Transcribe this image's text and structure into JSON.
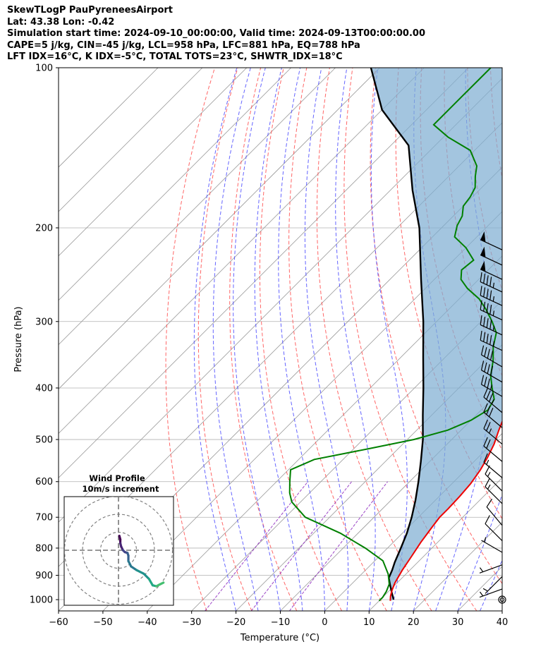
{
  "header": {
    "line1": "SkewTLogP PauPyreneesAirport",
    "line2": "Lat: 43.38   Lon: -0.42",
    "line3": "Simulation start time: 2024-09-10_00:00:00, Valid time: 2024-09-13T00:00:00.00",
    "line4": "CAPE=5 j/kg, CIN=-45 j/kg, LCL=958 hPa, LFC=881 hPa, EQ=788 hPa",
    "line5": "LFT IDX=16°C, K IDX=-5°C, TOTAL TOTS=23°C, SHWTR_IDX=18°C"
  },
  "chart_data": {
    "type": "line",
    "subtype": "skew-t log-p",
    "xlabel": "Temperature (°C)",
    "ylabel": "Pressure (hPa)",
    "xlim": [
      -60,
      40
    ],
    "ylim": [
      1050,
      100
    ],
    "y_scale": "log",
    "x_ticks": [
      -60,
      -50,
      -40,
      -30,
      -20,
      -10,
      0,
      10,
      20,
      30,
      40
    ],
    "x_tick_labels": [
      "−60",
      "−50",
      "−40",
      "−30",
      "−20",
      "−10",
      "0",
      "10",
      "20",
      "30",
      "40"
    ],
    "y_ticks": [
      1000,
      900,
      800,
      700,
      600,
      500,
      400,
      300,
      200,
      100
    ],
    "y_tick_labels": [
      "1000",
      "900",
      "800",
      "700",
      "600",
      "500",
      "400",
      "300",
      "200",
      "100"
    ],
    "grid": true,
    "colors": {
      "temperature": "#ee0000",
      "dewpoint": "#008000",
      "parcel": "#000000",
      "cape_fill": "#7fafd2",
      "dry_adiabat": "#ff5555",
      "moist_adiabat": "#4a4aff",
      "mixing_ratio": "#9030c0",
      "isotherm": "#999999",
      "barb": "#000000"
    },
    "series": [
      {
        "key": "temperature",
        "points": [
          [
            12.5,
            1005
          ],
          [
            11.5,
            985
          ],
          [
            10.5,
            960
          ],
          [
            9.5,
            930
          ],
          [
            8.3,
            880
          ],
          [
            7.3,
            830
          ],
          [
            6.2,
            780
          ],
          [
            5.3,
            730
          ],
          [
            4.8,
            700
          ],
          [
            4.8,
            675
          ],
          [
            4.6,
            640
          ],
          [
            4.2,
            605
          ],
          [
            3.3,
            570
          ],
          [
            2.1,
            540
          ],
          [
            0.6,
            510
          ],
          [
            -1.5,
            480
          ],
          [
            -3.5,
            450
          ],
          [
            -5.7,
            420
          ],
          [
            -8.2,
            390
          ],
          [
            -11.7,
            360
          ],
          [
            -16.0,
            330
          ],
          [
            -20.2,
            300
          ],
          [
            -24.3,
            275
          ],
          [
            -28.3,
            250
          ],
          [
            -33.0,
            230
          ],
          [
            -38.0,
            210
          ],
          [
            -43.0,
            195
          ],
          [
            -48.5,
            180
          ],
          [
            -55.0,
            165
          ],
          [
            -60.5,
            150
          ],
          [
            -64.0,
            138
          ],
          [
            -66.5,
            128
          ],
          [
            -68.5,
            120
          ],
          [
            -71.5,
            112
          ],
          [
            -75.0,
            105
          ],
          [
            -77.5,
            100
          ]
        ]
      },
      {
        "key": "dewpoint",
        "points": [
          [
            10.0,
            1005
          ],
          [
            10.0,
            990
          ],
          [
            9.5,
            965
          ],
          [
            8.5,
            935
          ],
          [
            6.0,
            895
          ],
          [
            1.8,
            845
          ],
          [
            -5.0,
            800
          ],
          [
            -14.0,
            750
          ],
          [
            -25.5,
            700
          ],
          [
            -32.0,
            655
          ],
          [
            -34.5,
            630
          ],
          [
            -37.0,
            600
          ],
          [
            -39.5,
            570
          ],
          [
            -36.5,
            545
          ],
          [
            -26.5,
            520
          ],
          [
            -18.5,
            500
          ],
          [
            -13.0,
            480
          ],
          [
            -10.0,
            460
          ],
          [
            -8.5,
            440
          ],
          [
            -9.5,
            420
          ],
          [
            -12.5,
            400
          ],
          [
            -15.5,
            380
          ],
          [
            -18.5,
            355
          ],
          [
            -21.5,
            335
          ],
          [
            -24.0,
            315
          ],
          [
            -27.5,
            300
          ],
          [
            -31.5,
            285
          ],
          [
            -35.5,
            272
          ],
          [
            -40.5,
            260
          ],
          [
            -44.0,
            250
          ],
          [
            -46.0,
            240
          ],
          [
            -45.5,
            230
          ],
          [
            -50.0,
            218
          ],
          [
            -55.0,
            208
          ],
          [
            -57.0,
            198
          ],
          [
            -58.0,
            190
          ],
          [
            -60.0,
            182
          ],
          [
            -60.5,
            175
          ],
          [
            -61.5,
            168
          ],
          [
            -64.0,
            160
          ],
          [
            -66.0,
            153
          ],
          [
            -71.0,
            143
          ],
          [
            -79.0,
            135
          ],
          [
            -85.0,
            128
          ],
          [
            -85.0,
            120
          ],
          [
            -85.0,
            112
          ],
          [
            -85.0,
            105
          ],
          [
            -85.0,
            100
          ]
        ]
      },
      {
        "key": "parcel",
        "points": [
          [
            13.0,
            1000
          ],
          [
            11.0,
            970
          ],
          [
            9.0,
            940
          ],
          [
            7.0,
            910
          ],
          [
            6.0,
            880
          ],
          [
            4.8,
            850
          ],
          [
            3.0,
            800
          ],
          [
            1.0,
            750
          ],
          [
            -1.5,
            700
          ],
          [
            -4.5,
            650
          ],
          [
            -8.0,
            600
          ],
          [
            -12.0,
            550
          ],
          [
            -16.5,
            500
          ],
          [
            -22.0,
            450
          ],
          [
            -28.0,
            400
          ],
          [
            -35.0,
            350
          ],
          [
            -43.0,
            300
          ],
          [
            -53.0,
            250
          ],
          [
            -65.0,
            200
          ],
          [
            -75.0,
            170
          ],
          [
            -86.0,
            140
          ],
          [
            -100.0,
            120
          ],
          [
            -112.0,
            100
          ]
        ]
      }
    ],
    "winds": [
      {
        "p": 1000,
        "speed_kt": 0,
        "dir_deg": 0
      },
      {
        "p": 955,
        "speed_kt": 5,
        "dir_deg": 250
      },
      {
        "p": 905,
        "speed_kt": 5,
        "dir_deg": 225
      },
      {
        "p": 860,
        "speed_kt": 5,
        "dir_deg": 250
      },
      {
        "p": 815,
        "speed_kt": 5,
        "dir_deg": 300
      },
      {
        "p": 775,
        "speed_kt": 10,
        "dir_deg": 315
      },
      {
        "p": 725,
        "speed_kt": 10,
        "dir_deg": 320
      },
      {
        "p": 660,
        "speed_kt": 15,
        "dir_deg": 315
      },
      {
        "p": 625,
        "speed_kt": 15,
        "dir_deg": 315
      },
      {
        "p": 590,
        "speed_kt": 15,
        "dir_deg": 310
      },
      {
        "p": 550,
        "speed_kt": 20,
        "dir_deg": 310
      },
      {
        "p": 510,
        "speed_kt": 25,
        "dir_deg": 310
      },
      {
        "p": 475,
        "speed_kt": 30,
        "dir_deg": 310
      },
      {
        "p": 445,
        "speed_kt": 35,
        "dir_deg": 310
      },
      {
        "p": 415,
        "speed_kt": 35,
        "dir_deg": 300
      },
      {
        "p": 390,
        "speed_kt": 40,
        "dir_deg": 300
      },
      {
        "p": 365,
        "speed_kt": 40,
        "dir_deg": 300
      },
      {
        "p": 340,
        "speed_kt": 45,
        "dir_deg": 295
      },
      {
        "p": 318,
        "speed_kt": 45,
        "dir_deg": 295
      },
      {
        "p": 298,
        "speed_kt": 45,
        "dir_deg": 295
      },
      {
        "p": 280,
        "speed_kt": 45,
        "dir_deg": 295
      },
      {
        "p": 264,
        "speed_kt": 45,
        "dir_deg": 295
      },
      {
        "p": 250,
        "speed_kt": 50,
        "dir_deg": 295
      },
      {
        "p": 235,
        "speed_kt": 50,
        "dir_deg": 295
      },
      {
        "p": 220,
        "speed_kt": 50,
        "dir_deg": 295
      }
    ],
    "hodograph": {
      "title": "Wind Profile",
      "subtitle": "10m/s increment",
      "ring_step_ms": 10,
      "ring_count": 3,
      "points_ms": [
        [
          0.5,
          8
        ],
        [
          1.0,
          6
        ],
        [
          1.0,
          4
        ],
        [
          1.5,
          2
        ],
        [
          2.5,
          0
        ],
        [
          3.5,
          -1
        ],
        [
          5.0,
          -1.5
        ],
        [
          5.5,
          -3
        ],
        [
          5.5,
          -6
        ],
        [
          7.0,
          -9
        ],
        [
          10.0,
          -11
        ],
        [
          14.0,
          -13
        ],
        [
          17.0,
          -16
        ],
        [
          19.0,
          -19.5
        ],
        [
          21.0,
          -20
        ],
        [
          23.0,
          -19
        ],
        [
          25.0,
          -18
        ]
      ]
    }
  }
}
